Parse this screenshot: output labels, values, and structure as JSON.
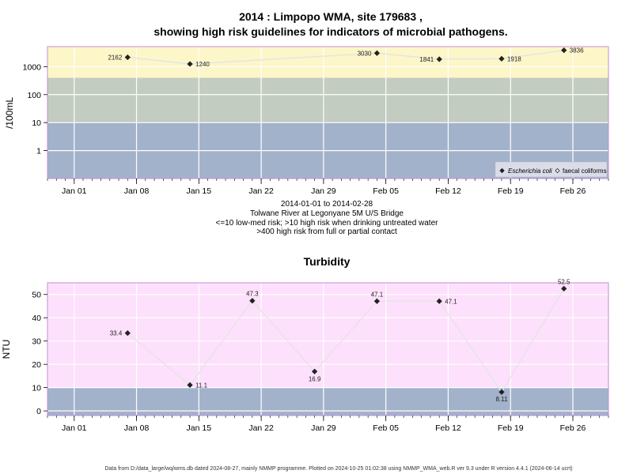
{
  "chart_data": [
    {
      "type": "line",
      "title_line1": "2014 : Limpopo WMA, site 179683 ,",
      "title_line2": "showing high risk guidelines for indicators of microbial pathogens.",
      "ylabel": "/100mL",
      "yscale": "log",
      "ylim": [
        0.1,
        5200
      ],
      "yticks": [
        {
          "v": 1,
          "label": "1"
        },
        {
          "v": 10,
          "label": "10"
        },
        {
          "v": 100,
          "label": "100"
        },
        {
          "v": 1000,
          "label": "1000"
        }
      ],
      "bands": [
        {
          "from": 0.1,
          "to": 10,
          "color": "#a3b2cb"
        },
        {
          "from": 10,
          "to": 400,
          "color": "#c3ccc0"
        },
        {
          "from": 400,
          "to": 5200,
          "color": "#fcf6c8"
        }
      ],
      "series": [
        {
          "name": "Escherichia coli",
          "x": [
            "2014-01-07",
            "2014-01-14",
            "2014-02-04",
            "2014-02-11",
            "2014-02-18",
            "2014-02-25"
          ],
          "values": [
            2162,
            1240,
            3030,
            1841,
            1918,
            3836
          ],
          "labels": [
            "2162",
            "1240",
            "3030",
            "1841",
            "1918",
            "3836"
          ]
        }
      ],
      "legend": {
        "position": "bottom-right",
        "items": [
          {
            "label": "Escherichia coli",
            "marker": "filled-diamond"
          },
          {
            "label": "faecal coliforms",
            "marker": "open-diamond"
          }
        ]
      }
    },
    {
      "type": "line",
      "title": "Turbidity",
      "ylabel": "NTU",
      "ylim": [
        -2,
        55
      ],
      "yticks": [
        {
          "v": 0,
          "label": "0"
        },
        {
          "v": 10,
          "label": "10"
        },
        {
          "v": 20,
          "label": "20"
        },
        {
          "v": 30,
          "label": "30"
        },
        {
          "v": 40,
          "label": "40"
        },
        {
          "v": 50,
          "label": "50"
        }
      ],
      "bands": [
        {
          "from": -2,
          "to": 10,
          "color": "#a3b2cb"
        },
        {
          "from": 10,
          "to": 55,
          "color": "#fde0fb"
        }
      ],
      "series": [
        {
          "x": [
            "2014-01-07",
            "2014-01-14",
            "2014-01-21",
            "2014-01-28",
            "2014-02-04",
            "2014-02-11",
            "2014-02-18",
            "2014-02-25"
          ],
          "values": [
            33.4,
            11.1,
            47.3,
            16.9,
            47.1,
            47.1,
            8.11,
            52.5
          ],
          "labels": [
            "33.4",
            "11.1",
            "47.3",
            "16.9",
            "47.1",
            "47.1",
            "8.11",
            "52.5"
          ]
        }
      ]
    }
  ],
  "xaxis": {
    "range": [
      "2013-12-29",
      "2014-03-02"
    ],
    "ticks": [
      {
        "date": "2014-01-01",
        "label": "Jan 01"
      },
      {
        "date": "2014-01-08",
        "label": "Jan 08"
      },
      {
        "date": "2014-01-15",
        "label": "Jan 15"
      },
      {
        "date": "2014-01-22",
        "label": "Jan 22"
      },
      {
        "date": "2014-01-29",
        "label": "Jan 29"
      },
      {
        "date": "2014-02-05",
        "label": "Feb 05"
      },
      {
        "date": "2014-02-12",
        "label": "Feb 12"
      },
      {
        "date": "2014-02-19",
        "label": "Feb 19"
      },
      {
        "date": "2014-02-26",
        "label": "Feb 26"
      }
    ]
  },
  "subtitle_lines": [
    "2014-01-01 to 2014-02-28",
    "Tolwane River at Legonyane 5M U/S Bridge",
    "<=10 low-med risk; >10 high risk when drinking untreated water",
    ">400 high risk from full or partial contact"
  ],
  "footer": "Data from D:/data_large/wq/wms.db dated 2024-08-27, mainly NMMP programme. Plotted on 2024-10-25 01:02:38 using NMMP_WMA_web.R ver 9.3 under R version 4.4.1 (2024-06-14 ucrt)"
}
